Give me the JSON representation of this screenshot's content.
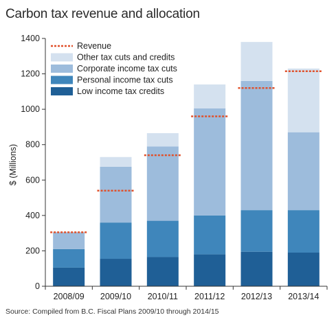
{
  "title": "Carbon tax revenue and allocation",
  "source": "Source: Compiled from B.C. Fiscal Plans 2009/10 through 2014/15",
  "colors": {
    "low_income": "#1f5f96",
    "personal": "#3f86bb",
    "corporate": "#9dbcdc",
    "other": "#d4e1ef",
    "revenue": "#e0502a",
    "axis": "#333333"
  },
  "chart_data": {
    "type": "bar",
    "stacked": true,
    "categories": [
      "2008/09",
      "2009/10",
      "2010/11",
      "2011/12",
      "2012/13",
      "2013/14"
    ],
    "series": [
      {
        "name": "Low income tax credits",
        "color_key": "low_income",
        "values": [
          105,
          155,
          165,
          180,
          195,
          190
        ]
      },
      {
        "name": "Personal income tax cuts",
        "color_key": "personal",
        "values": [
          105,
          205,
          205,
          220,
          235,
          240
        ]
      },
      {
        "name": "Corporate income tax cuts",
        "color_key": "corporate",
        "values": [
          95,
          315,
          420,
          605,
          730,
          440
        ]
      },
      {
        "name": "Other tax cuts and credits",
        "color_key": "other",
        "values": [
          0,
          55,
          75,
          135,
          220,
          360
        ]
      }
    ],
    "revenue": {
      "name": "Revenue",
      "color_key": "revenue",
      "values": [
        305,
        540,
        740,
        960,
        1120,
        1215
      ]
    },
    "ylabel": "$ (Millions)",
    "xlabel": "",
    "ylim": [
      0,
      1400
    ],
    "yticks": [
      0,
      200,
      400,
      600,
      800,
      1000,
      1200,
      1400
    ],
    "legend_order": [
      "Revenue",
      "Other tax cuts and credits",
      "Corporate income tax cuts",
      "Personal income tax cuts",
      "Low income tax credits"
    ],
    "legend_position": "top-left",
    "grid": false
  }
}
